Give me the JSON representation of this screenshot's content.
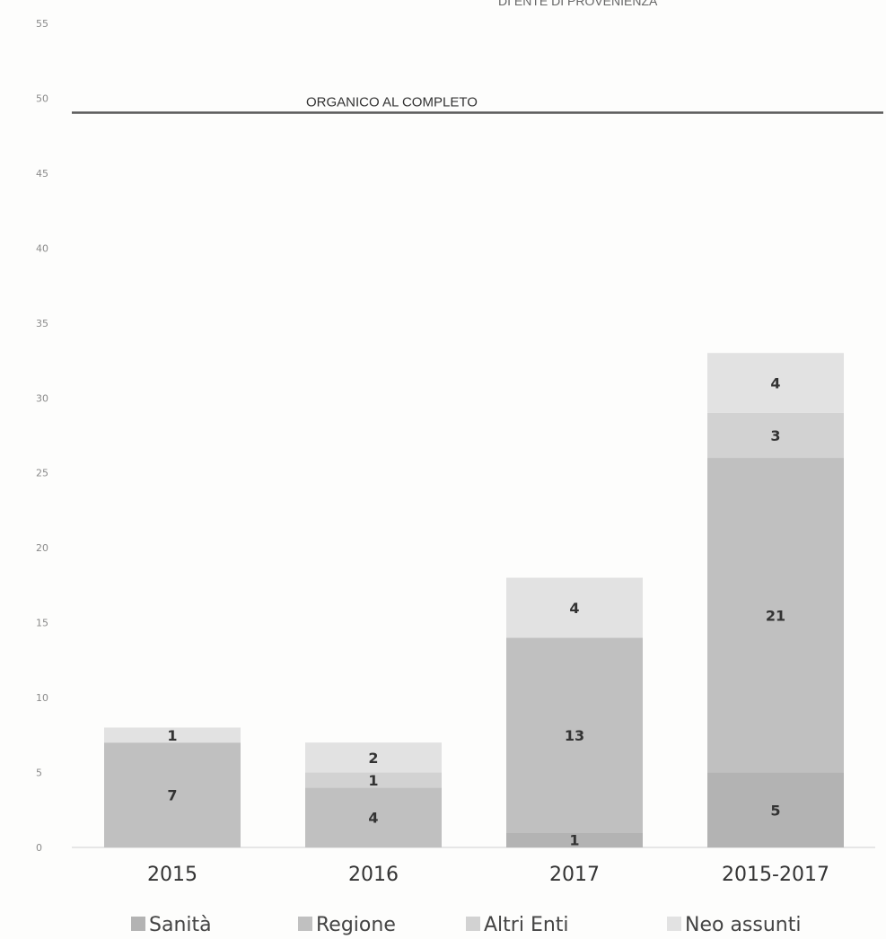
{
  "header_text": "DI ENTE DI PROVENIENZA",
  "chart_data": {
    "type": "bar",
    "stacked": true,
    "categories": [
      "2015",
      "2016",
      "2017",
      "2015-2017"
    ],
    "series": [
      {
        "name": "Sanità",
        "values": [
          0,
          0,
          1,
          5
        ],
        "color": "#b3b3b3"
      },
      {
        "name": "Regione",
        "values": [
          7,
          4,
          13,
          21
        ],
        "color": "#c0c0c0"
      },
      {
        "name": "Altri Enti",
        "values": [
          0,
          1,
          0,
          3
        ],
        "color": "#d2d2d2"
      },
      {
        "name": "Neo assunti",
        "values": [
          1,
          2,
          4,
          4
        ],
        "color": "#e2e2e2"
      }
    ],
    "data_labels": [
      [
        "",
        "",
        "1",
        "5"
      ],
      [
        "7",
        "4",
        "13",
        "21"
      ],
      [
        "",
        "1",
        "",
        "3"
      ],
      [
        "1",
        "2",
        "4",
        "4"
      ]
    ],
    "y_ticks": [
      "0",
      "5",
      "10",
      "15",
      "20",
      "25",
      "30",
      "35",
      "40",
      "45",
      "50",
      "55"
    ],
    "ylim": [
      0,
      55
    ],
    "reference_line": {
      "value": 50,
      "label": "ORGANICO AL COMPLETO"
    },
    "grid": false,
    "legend_position": "bottom"
  }
}
